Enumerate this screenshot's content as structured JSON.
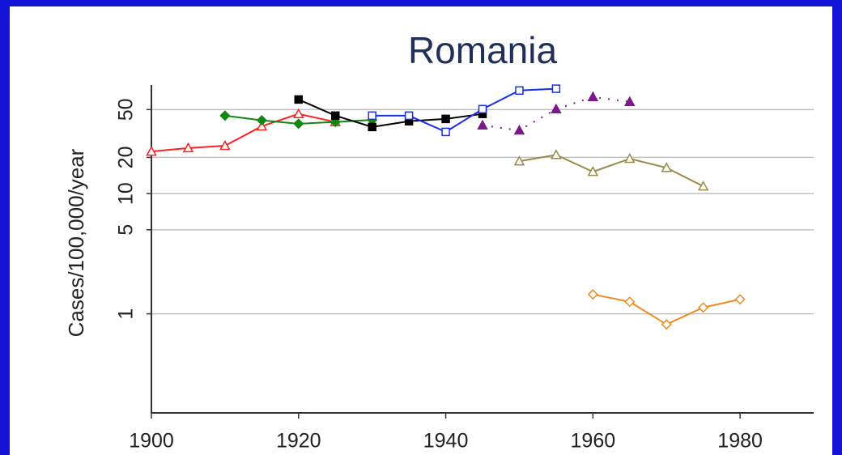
{
  "chart_data": {
    "type": "line",
    "title": "Romania",
    "y_label": "Cases/100,000/year",
    "log_scale": true,
    "grid": true,
    "xlim": [
      1900,
      1990
    ],
    "xticks": [
      1900,
      1920,
      1940,
      1960,
      1980
    ],
    "ylim": [
      0.15,
      80
    ],
    "yticks": [
      1,
      5,
      10,
      20,
      50
    ],
    "series": [
      {
        "color": "#ff2020",
        "marker": "triangle-open",
        "x": [
          1900,
          1905,
          1910,
          1915,
          1920,
          1925
        ],
        "values": [
          22.4,
          23.9,
          25,
          36.3,
          46,
          39.4
        ]
      },
      {
        "color": "#118811",
        "marker": "diamond",
        "x": [
          1910,
          1915,
          1920,
          1925,
          1930
        ],
        "values": [
          44.5,
          40.7,
          38.1,
          39.4,
          41
        ]
      },
      {
        "color": "#000000",
        "marker": "square",
        "x": [
          1920,
          1925,
          1930,
          1935,
          1940,
          1945
        ],
        "values": [
          60.6,
          44.5,
          35.8,
          40,
          41.8,
          46
        ]
      },
      {
        "color": "#1a2fe8",
        "marker": "square-open",
        "x": [
          1930,
          1935,
          1940,
          1945,
          1950,
          1955
        ],
        "values": [
          44.5,
          44.5,
          32.6,
          50.4,
          72,
          74.5
        ]
      },
      {
        "color": "#7a1a8a",
        "marker": "triangle",
        "dash": "dotted",
        "x": [
          1945,
          1950,
          1955,
          1960,
          1965
        ],
        "values": [
          37,
          33.6,
          50.4,
          63.6,
          58
        ]
      },
      {
        "color": "#9a8a4a",
        "marker": "triangle-open",
        "x": [
          1950,
          1955,
          1960,
          1965,
          1970,
          1975
        ],
        "values": [
          18.6,
          21,
          15.2,
          19.5,
          16.4,
          11.5
        ]
      },
      {
        "color": "#f08a20",
        "marker": "diamond-open",
        "x": [
          1960,
          1965,
          1970,
          1975,
          1980
        ],
        "values": [
          1.45,
          1.26,
          0.817,
          1.13,
          1.32
        ]
      }
    ]
  }
}
